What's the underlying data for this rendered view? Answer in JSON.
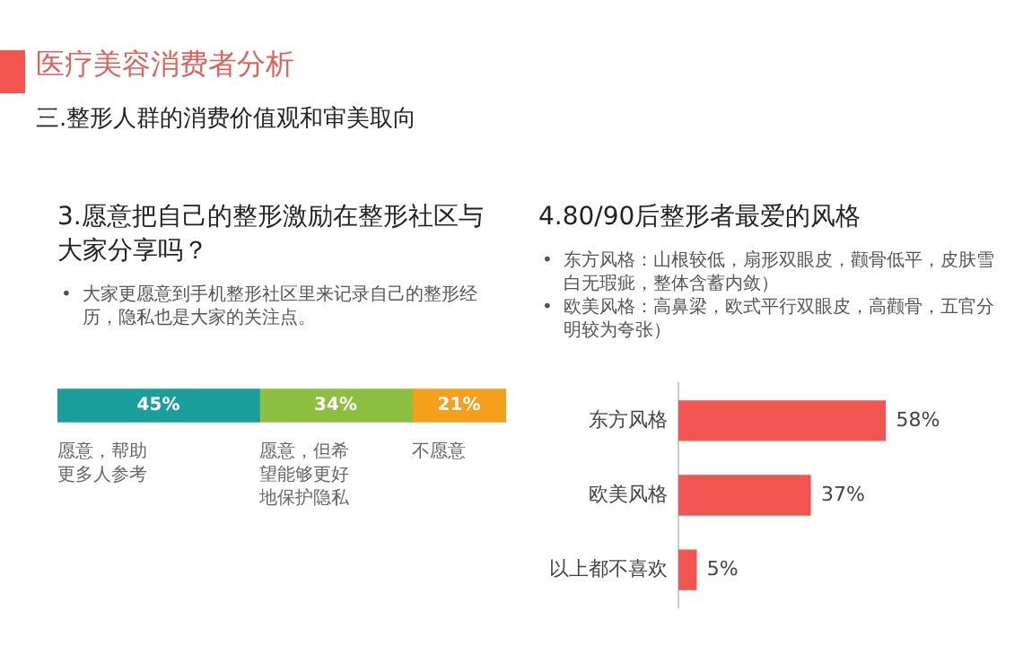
{
  "chart_data": [
    {
      "type": "other",
      "title": "医疗美容消费者分析",
      "subtitle": "三.整形人群的消费价值观和审美取向"
    },
    {
      "type": "bar",
      "orientation": "horizontal",
      "stacked": true,
      "title": "3.愿意把自己的整形激励在整形社区与大家分享吗？",
      "annotations": [
        "•\t大家更愿意到手机整形社区里来记录自己的整形经历，隐私也是大家的关注点。"
      ],
      "categories": [
        null
      ],
      "legend": false,
      "grid": false,
      "tick_labels": false,
      "series": [
        {
          "name": "愿意，帮助更多人参考",
          "color": "#1a9e9c",
          "values": [
            45
          ],
          "value_labels": [
            "45%"
          ]
        },
        {
          "name": "愿意，但希望能够更好地保护隐私",
          "color": "#8cbf40",
          "values": [
            34
          ],
          "value_labels": [
            "34%"
          ]
        },
        {
          "name": "不愿意",
          "color": "#f5a01c",
          "values": [
            21
          ],
          "value_labels": [
            "21%"
          ]
        }
      ]
    },
    {
      "type": "bar",
      "orientation": "horizontal",
      "title": "4.80/90后整形者最爱的风格",
      "annotations": [
        "•\t东方风格：山根较低，扇形双眼皮，颧骨低平，皮肤雪白无瑕疵，整体含蓄内敛）",
        "•\t欧美风格：高鼻梁，欧式平行双眼皮，高颧骨，五官分明较为夸张）"
      ],
      "categories": [
        "东方风格",
        "欧美风格",
        "以上都不喜欢"
      ],
      "values": [
        58,
        37,
        5
      ],
      "value_labels": [
        "58%",
        "37%",
        "5%"
      ],
      "color": "#f0554f",
      "legend": false,
      "grid": false,
      "tick_labels": "y"
    }
  ]
}
